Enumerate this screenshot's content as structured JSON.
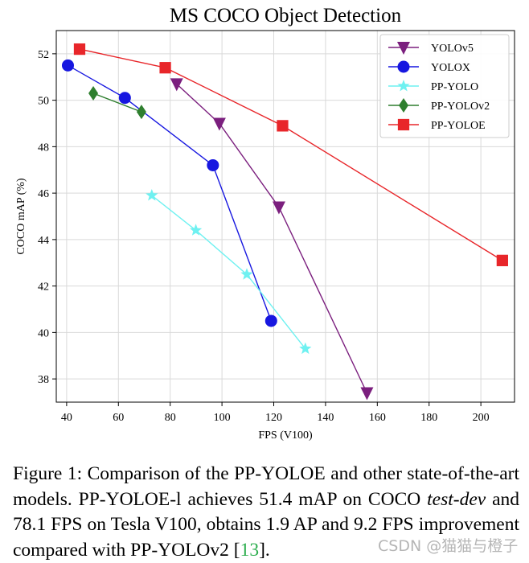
{
  "chart_data": {
    "type": "line",
    "title": "MS COCO Object Detection",
    "xlabel": "FPS (V100)",
    "ylabel": "COCO mAP (%)",
    "xlim": [
      36,
      213
    ],
    "ylim": [
      37,
      53
    ],
    "xticks": [
      40,
      60,
      80,
      100,
      120,
      140,
      160,
      180,
      200
    ],
    "yticks": [
      38,
      40,
      42,
      44,
      46,
      48,
      50,
      52
    ],
    "grid": true,
    "legend_position": "top-right",
    "series": [
      {
        "name": "YOLOv5",
        "color": "#7b1f7e",
        "marker": "triangle-down",
        "x": [
          82.5,
          99,
          122,
          156
        ],
        "y": [
          50.7,
          49.0,
          45.4,
          37.4
        ]
      },
      {
        "name": "YOLOX",
        "color": "#1717e0",
        "marker": "circle",
        "x": [
          40.5,
          62.5,
          96.5,
          119
        ],
        "y": [
          51.5,
          50.1,
          47.2,
          40.5
        ]
      },
      {
        "name": "PP-YOLO",
        "color": "#6ff1f1",
        "marker": "star",
        "x": [
          72.9,
          89.9,
          109.6,
          132.2
        ],
        "y": [
          45.9,
          44.4,
          42.5,
          39.3
        ]
      },
      {
        "name": "PP-YOLOv2",
        "color": "#2f7f2f",
        "marker": "diamond",
        "x": [
          50.3,
          68.9
        ],
        "y": [
          50.3,
          49.5
        ]
      },
      {
        "name": "PP-YOLOE",
        "color": "#e8262a",
        "marker": "square",
        "x": [
          45,
          78.1,
          123.4,
          208.3
        ],
        "y": [
          52.2,
          51.4,
          48.9,
          43.1
        ]
      }
    ]
  },
  "caption": {
    "prefix": "Figure 1: Comparison of the PP-YOLOE and other state-of-the-art models. PP-YOLOE-l achieves 51.4 mAP on COCO",
    "italic": "test-dev",
    "suffix": "and 78.1 FPS on Tesla V100, obtains 1.9 AP and 9.2 FPS improvement compared with PP-YOLOv2 [",
    "cite": "13",
    "end": "]."
  },
  "watermark": "CSDN @猫猫与橙子"
}
